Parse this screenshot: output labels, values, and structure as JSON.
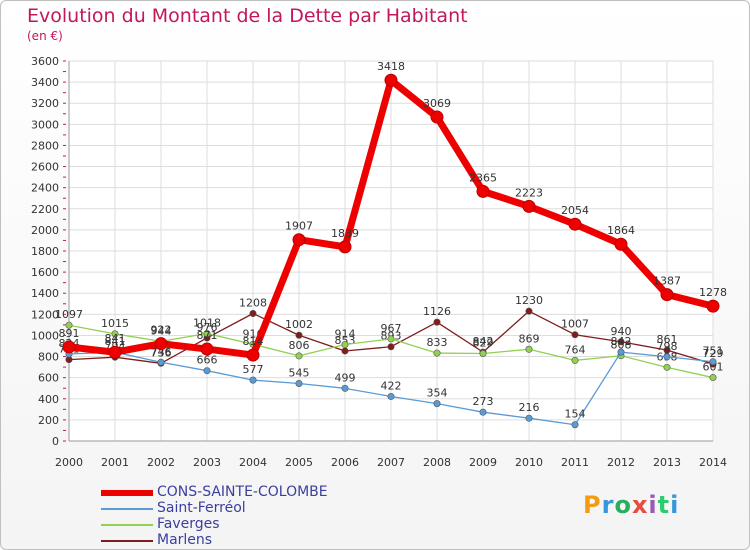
{
  "header": {
    "title": "Evolution du Montant de la Dette par Habitant",
    "unit": "(en €)"
  },
  "logo": {
    "text": "Proxiti",
    "colors": [
      "#f39c12",
      "#3498db",
      "#27ae60",
      "#e74c3c",
      "#9b59b6",
      "#2ecc71",
      "#3498db"
    ]
  },
  "chart_data": {
    "type": "line",
    "title": "Evolution du Montant de la Dette par Habitant",
    "ylabel": "(en €)",
    "xlabel": "",
    "ylim": [
      0,
      3600
    ],
    "yticks": [
      0,
      200,
      400,
      600,
      800,
      1000,
      1200,
      1400,
      1600,
      1800,
      2000,
      2200,
      2400,
      2600,
      2800,
      3000,
      3200,
      3400,
      3600
    ],
    "grid": true,
    "legend": "bottom-left",
    "categories": [
      "2000",
      "2001",
      "2002",
      "2003",
      "2004",
      "2005",
      "2006",
      "2007",
      "2008",
      "2009",
      "2010",
      "2011",
      "2012",
      "2013",
      "2014"
    ],
    "series": [
      {
        "name": "CONS-SAINTE-COLOMBE",
        "color": "#ee0000",
        "values": [
          891,
          841,
          922,
          871,
          814,
          1907,
          1839,
          3418,
          3069,
          2365,
          2223,
          2054,
          1864,
          1387,
          1278
        ]
      },
      {
        "name": "Saint-Ferréol",
        "color": "#5b9bd5",
        "values": [
          824,
          841,
          746,
          666,
          577,
          545,
          499,
          422,
          354,
          273,
          216,
          154,
          842,
          798,
          751
        ]
      },
      {
        "name": "Faverges",
        "color": "#92d050",
        "values": [
          1097,
          1015,
          944,
          1018,
          916,
          806,
          914,
          967,
          833,
          829,
          869,
          764,
          808,
          698,
          601
        ]
      },
      {
        "name": "Marlens",
        "color": "#7f1c1c",
        "values": [
          771,
          794,
          736,
          976,
          1208,
          1002,
          853,
          893,
          1126,
          842,
          1230,
          1007,
          940,
          861,
          729
        ]
      }
    ]
  }
}
